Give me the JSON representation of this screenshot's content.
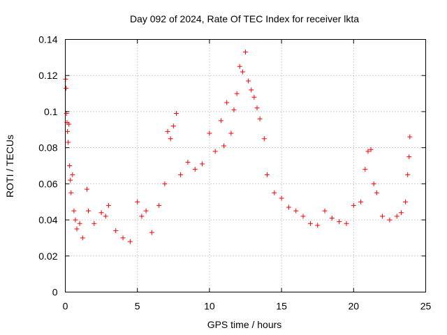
{
  "chart_data": {
    "type": "scatter",
    "title": "Day 092 of 2024, Rate Of TEC Index for receiver lkta",
    "xlabel": "GPS time / hours",
    "ylabel": "ROTI / TECUs",
    "xlim": [
      0,
      25
    ],
    "ylim": [
      0,
      0.14
    ],
    "x_ticks": [
      0,
      5,
      10,
      15,
      20,
      25
    ],
    "x_tick_labels": [
      "0",
      "5",
      "10",
      "15",
      "20",
      "25"
    ],
    "y_ticks": [
      0,
      0.02,
      0.04,
      0.06,
      0.08,
      0.1,
      0.12,
      0.14
    ],
    "y_tick_labels": [
      "0",
      "0.02",
      "0.04",
      "0.06",
      "0.08",
      "0.1",
      "0.12",
      "0.14"
    ],
    "grid": true,
    "marker": "+",
    "color": "#ff0000",
    "series": [
      {
        "name": "ROTI",
        "x": [
          0.02,
          0.05,
          0.08,
          0.12,
          0.15,
          0.2,
          0.25,
          0.3,
          0.35,
          0.4,
          0.5,
          0.6,
          0.7,
          0.8,
          1.0,
          1.2,
          1.5,
          1.6,
          2.0,
          2.5,
          2.8,
          3.0,
          3.5,
          4.0,
          4.5,
          5.0,
          5.3,
          5.6,
          6.0,
          6.5,
          6.9,
          7.1,
          7.3,
          7.5,
          7.7,
          8.0,
          8.5,
          9.0,
          9.5,
          10.0,
          10.4,
          10.8,
          11.0,
          11.2,
          11.5,
          11.7,
          11.9,
          12.1,
          12.3,
          12.5,
          12.7,
          12.9,
          13.1,
          13.3,
          13.5,
          13.8,
          14.0,
          14.5,
          15.0,
          15.5,
          16.0,
          16.5,
          17.0,
          17.5,
          18.0,
          18.5,
          19.0,
          19.5,
          20.0,
          20.5,
          20.8,
          21.0,
          21.2,
          21.4,
          21.6,
          22.0,
          22.5,
          23.0,
          23.3,
          23.6,
          23.75,
          23.85,
          23.9
        ],
        "y": [
          0.118,
          0.113,
          0.099,
          0.094,
          0.089,
          0.083,
          0.093,
          0.07,
          0.062,
          0.055,
          0.065,
          0.045,
          0.04,
          0.035,
          0.038,
          0.03,
          0.057,
          0.045,
          0.038,
          0.044,
          0.042,
          0.048,
          0.034,
          0.03,
          0.028,
          0.05,
          0.042,
          0.045,
          0.033,
          0.048,
          0.06,
          0.089,
          0.085,
          0.092,
          0.099,
          0.065,
          0.072,
          0.068,
          0.071,
          0.088,
          0.078,
          0.095,
          0.081,
          0.105,
          0.088,
          0.101,
          0.11,
          0.125,
          0.122,
          0.133,
          0.117,
          0.112,
          0.108,
          0.102,
          0.096,
          0.085,
          0.065,
          0.055,
          0.052,
          0.047,
          0.045,
          0.042,
          0.038,
          0.037,
          0.045,
          0.041,
          0.039,
          0.038,
          0.048,
          0.05,
          0.068,
          0.078,
          0.079,
          0.06,
          0.055,
          0.042,
          0.04,
          0.042,
          0.044,
          0.05,
          0.065,
          0.075,
          0.086
        ]
      }
    ]
  }
}
